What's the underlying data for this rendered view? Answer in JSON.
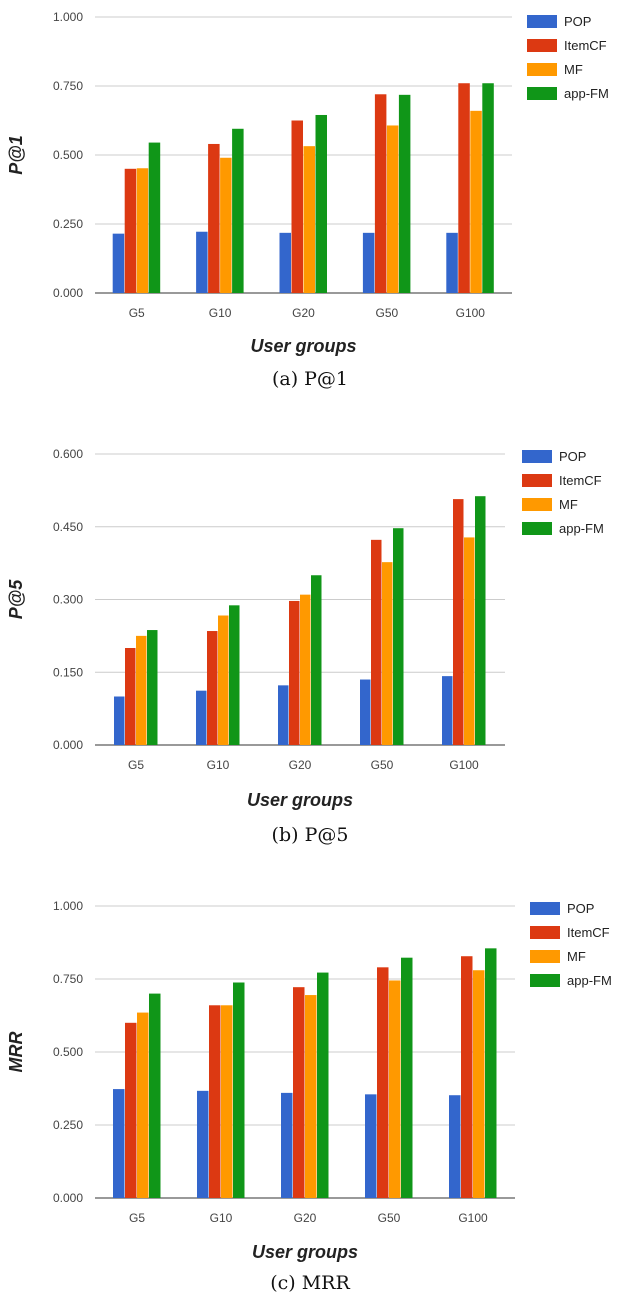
{
  "legend_colors": {
    "POP": "#3366cc",
    "ItemCF": "#dc3912",
    "MF": "#ff9900",
    "app-FM": "#109618"
  },
  "chart_data": [
    {
      "type": "bar",
      "caption": "(a) P@1",
      "ylabel": "P@1",
      "xlabel": "User groups",
      "categories": [
        "G5",
        "G10",
        "G20",
        "G50",
        "G100"
      ],
      "ylim": [
        0,
        1.0
      ],
      "yticks": [
        "0.000",
        "0.250",
        "0.500",
        "0.750",
        "1.000"
      ],
      "grid": true,
      "legend_position": "right",
      "series": [
        {
          "name": "POP",
          "values": [
            0.215,
            0.222,
            0.218,
            0.218,
            0.218
          ]
        },
        {
          "name": "ItemCF",
          "values": [
            0.45,
            0.54,
            0.625,
            0.72,
            0.76
          ]
        },
        {
          "name": "MF",
          "values": [
            0.452,
            0.49,
            0.532,
            0.607,
            0.66
          ]
        },
        {
          "name": "app-FM",
          "values": [
            0.545,
            0.595,
            0.645,
            0.718,
            0.76
          ]
        }
      ]
    },
    {
      "type": "bar",
      "caption": "(b) P@5",
      "ylabel": "P@5",
      "xlabel": "User groups",
      "categories": [
        "G5",
        "G10",
        "G20",
        "G50",
        "G100"
      ],
      "ylim": [
        0,
        0.6
      ],
      "yticks": [
        "0.000",
        "0.150",
        "0.300",
        "0.450",
        "0.600"
      ],
      "grid": true,
      "legend_position": "right",
      "series": [
        {
          "name": "POP",
          "values": [
            0.1,
            0.112,
            0.123,
            0.135,
            0.142
          ]
        },
        {
          "name": "ItemCF",
          "values": [
            0.2,
            0.235,
            0.297,
            0.423,
            0.507
          ]
        },
        {
          "name": "MF",
          "values": [
            0.225,
            0.267,
            0.31,
            0.377,
            0.428
          ]
        },
        {
          "name": "app-FM",
          "values": [
            0.237,
            0.288,
            0.35,
            0.447,
            0.513
          ]
        }
      ]
    },
    {
      "type": "bar",
      "caption": "(c) MRR",
      "ylabel": "MRR",
      "xlabel": "User groups",
      "categories": [
        "G5",
        "G10",
        "G20",
        "G50",
        "G100"
      ],
      "ylim": [
        0,
        1.0
      ],
      "yticks": [
        "0.000",
        "0.250",
        "0.500",
        "0.750",
        "1.000"
      ],
      "grid": true,
      "legend_position": "right",
      "series": [
        {
          "name": "POP",
          "values": [
            0.373,
            0.367,
            0.36,
            0.355,
            0.352
          ]
        },
        {
          "name": "ItemCF",
          "values": [
            0.6,
            0.66,
            0.722,
            0.79,
            0.828
          ]
        },
        {
          "name": "MF",
          "values": [
            0.635,
            0.66,
            0.695,
            0.745,
            0.78
          ]
        },
        {
          "name": "app-FM",
          "values": [
            0.7,
            0.738,
            0.772,
            0.823,
            0.855
          ]
        }
      ]
    }
  ]
}
